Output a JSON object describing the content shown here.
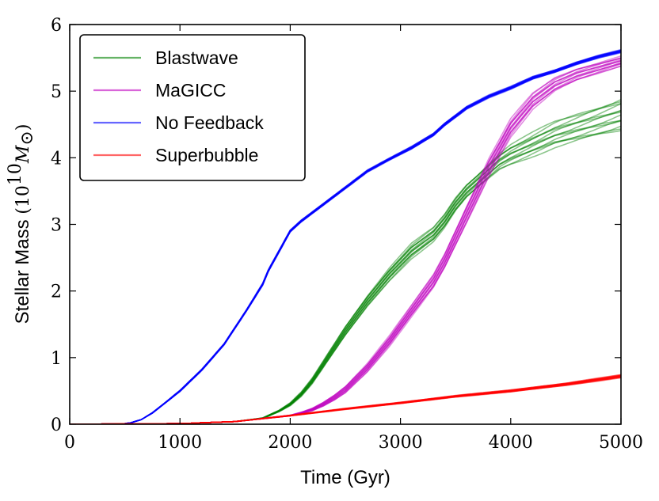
{
  "chart_data": {
    "type": "line",
    "xlabel": "Time (Gyr)",
    "ylabel_text": "Stellar Mass",
    "ylabel_unit": {
      "open": "(10",
      "exp": "10",
      "m": "M",
      "sun": "⊙",
      "close": ")"
    },
    "xlim": [
      0,
      5000
    ],
    "ylim": [
      0,
      6
    ],
    "xticks": [
      0,
      1000,
      2000,
      3000,
      4000,
      5000
    ],
    "yticks": [
      0,
      1,
      2,
      3,
      4,
      5,
      6
    ],
    "xtick_labels": [
      "0",
      "1000",
      "2000",
      "3000",
      "4000",
      "5000"
    ],
    "ytick_labels": [
      "0",
      "1",
      "2",
      "3",
      "4",
      "5",
      "6"
    ],
    "legend_position": "top-left",
    "series": [
      {
        "name": "Blastwave",
        "color": "#008000",
        "x": [
          0,
          1000,
          1500,
          1750,
          1900,
          2000,
          2100,
          2200,
          2300,
          2400,
          2500,
          2700,
          2900,
          3100,
          3300,
          3400,
          3500,
          3600,
          3700,
          3800,
          3900,
          4000,
          4200,
          4400,
          4600,
          4800,
          5000
        ],
        "values": [
          0,
          0.01,
          0.04,
          0.09,
          0.2,
          0.3,
          0.45,
          0.65,
          0.9,
          1.15,
          1.4,
          1.85,
          2.25,
          2.6,
          2.85,
          3.05,
          3.3,
          3.5,
          3.65,
          3.8,
          3.95,
          4.05,
          4.2,
          4.35,
          4.45,
          4.55,
          4.65
        ],
        "spread": [
          0,
          0,
          0,
          0.005,
          0.01,
          0.02,
          0.03,
          0.04,
          0.05,
          0.06,
          0.07,
          0.08,
          0.09,
          0.1,
          0.1,
          0.1,
          0.1,
          0.1,
          0.1,
          0.11,
          0.12,
          0.14,
          0.16,
          0.18,
          0.2,
          0.22,
          0.24
        ]
      },
      {
        "name": "MaGICC",
        "color": "#bf00bf",
        "x": [
          0,
          1000,
          1500,
          2000,
          2100,
          2200,
          2300,
          2400,
          2500,
          2700,
          2900,
          3100,
          3300,
          3400,
          3500,
          3600,
          3700,
          3800,
          3900,
          4000,
          4200,
          4400,
          4600,
          4800,
          5000
        ],
        "values": [
          0,
          0.01,
          0.04,
          0.13,
          0.17,
          0.22,
          0.3,
          0.4,
          0.52,
          0.85,
          1.25,
          1.7,
          2.15,
          2.45,
          2.8,
          3.15,
          3.5,
          3.85,
          4.15,
          4.45,
          4.85,
          5.1,
          5.25,
          5.35,
          5.45
        ],
        "spread": [
          0,
          0,
          0,
          0.005,
          0.01,
          0.02,
          0.03,
          0.04,
          0.05,
          0.06,
          0.07,
          0.08,
          0.1,
          0.11,
          0.12,
          0.13,
          0.13,
          0.13,
          0.12,
          0.12,
          0.11,
          0.1,
          0.09,
          0.08,
          0.07
        ]
      },
      {
        "name": "No Feedback",
        "color": "#0000ff",
        "x": [
          0,
          450,
          550,
          650,
          750,
          850,
          1000,
          1200,
          1400,
          1600,
          1750,
          1800,
          1900,
          2000,
          2100,
          2300,
          2500,
          2700,
          2900,
          3100,
          3300,
          3400,
          3600,
          3800,
          4000,
          4200,
          4400,
          4600,
          4800,
          5000
        ],
        "values": [
          0,
          0,
          0.02,
          0.07,
          0.17,
          0.3,
          0.5,
          0.82,
          1.2,
          1.7,
          2.1,
          2.3,
          2.6,
          2.9,
          3.05,
          3.3,
          3.55,
          3.8,
          3.98,
          4.15,
          4.35,
          4.5,
          4.75,
          4.92,
          5.05,
          5.2,
          5.3,
          5.42,
          5.52,
          5.6
        ],
        "spread": [
          0,
          0,
          0,
          0,
          0.005,
          0.005,
          0.01,
          0.01,
          0.01,
          0.01,
          0.015,
          0.015,
          0.015,
          0.015,
          0.015,
          0.015,
          0.015,
          0.015,
          0.015,
          0.02,
          0.02,
          0.02,
          0.02,
          0.02,
          0.02,
          0.02,
          0.02,
          0.02,
          0.02,
          0.02
        ]
      },
      {
        "name": "Superbubble",
        "color": "#ff0000",
        "x": [
          0,
          1000,
          1500,
          2000,
          2500,
          3000,
          3500,
          4000,
          4500,
          5000
        ],
        "values": [
          0,
          0.01,
          0.04,
          0.13,
          0.23,
          0.32,
          0.42,
          0.5,
          0.6,
          0.72
        ],
        "spread": [
          0,
          0,
          0,
          0.005,
          0.008,
          0.01,
          0.012,
          0.015,
          0.018,
          0.022
        ]
      }
    ]
  }
}
